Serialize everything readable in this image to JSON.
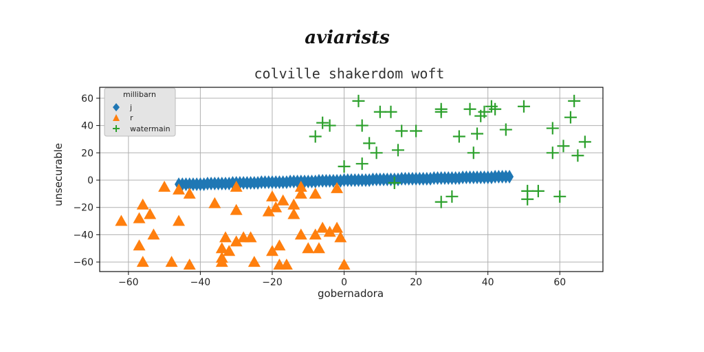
{
  "chart_data": {
    "type": "scatter",
    "suptitle": "aviarists",
    "title": "colville shakerdom woft",
    "xlabel": "gobernadora",
    "ylabel": "unsecurable",
    "xlim": [
      -68,
      72
    ],
    "ylim": [
      -67,
      68
    ],
    "xticks": [
      -60,
      -40,
      -20,
      0,
      20,
      40,
      60
    ],
    "yticks": [
      -60,
      -40,
      -20,
      0,
      20,
      40,
      60
    ],
    "grid": true,
    "legend": {
      "title": "millibarn",
      "placement": "top-left"
    },
    "colors": {
      "j": "#1f77b4",
      "r": "#ff7f0e",
      "watermain": "#2ca02c"
    },
    "series": [
      {
        "name": "j",
        "marker": "diamond",
        "points": [
          [
            -46,
            -3
          ],
          [
            -45,
            -3
          ],
          [
            -44,
            -3
          ],
          [
            -43,
            -3
          ],
          [
            -42,
            -3
          ],
          [
            -41,
            -3
          ],
          [
            -40,
            -3
          ],
          [
            -39,
            -3
          ],
          [
            -38,
            -2.5
          ],
          [
            -37,
            -2.5
          ],
          [
            -36,
            -2.5
          ],
          [
            -35,
            -2.5
          ],
          [
            -34,
            -2.5
          ],
          [
            -33,
            -2.5
          ],
          [
            -32,
            -2.5
          ],
          [
            -31,
            -2
          ],
          [
            -30,
            -2
          ],
          [
            -29,
            -2
          ],
          [
            -28,
            -2
          ],
          [
            -27,
            -2
          ],
          [
            -26,
            -2
          ],
          [
            -25,
            -2
          ],
          [
            -24,
            -2
          ],
          [
            -23,
            -1.5
          ],
          [
            -22,
            -1.5
          ],
          [
            -21,
            -1.5
          ],
          [
            -20,
            -1.5
          ],
          [
            -19,
            -1.5
          ],
          [
            -18,
            -1.5
          ],
          [
            -17,
            -1.5
          ],
          [
            -16,
            -1.5
          ],
          [
            -15,
            -1
          ],
          [
            -14,
            -1
          ],
          [
            -13,
            -1
          ],
          [
            -12,
            -1
          ],
          [
            -11,
            -1
          ],
          [
            -10,
            -1
          ],
          [
            -9,
            -1
          ],
          [
            -8,
            -1
          ],
          [
            -7,
            -0.5
          ],
          [
            -6,
            -0.5
          ],
          [
            -5,
            -0.5
          ],
          [
            -4,
            -0.5
          ],
          [
            -3,
            -0.5
          ],
          [
            -2,
            -0.5
          ],
          [
            -1,
            -0.5
          ],
          [
            0,
            0
          ],
          [
            1,
            0
          ],
          [
            2,
            0
          ],
          [
            3,
            0
          ],
          [
            4,
            0
          ],
          [
            5,
            0
          ],
          [
            6,
            0
          ],
          [
            7,
            0
          ],
          [
            8,
            0.5
          ],
          [
            9,
            0.5
          ],
          [
            10,
            0.5
          ],
          [
            11,
            0.5
          ],
          [
            12,
            0.5
          ],
          [
            13,
            0.5
          ],
          [
            14,
            0.5
          ],
          [
            15,
            0.5
          ],
          [
            16,
            1
          ],
          [
            17,
            1
          ],
          [
            18,
            1
          ],
          [
            19,
            1
          ],
          [
            20,
            1
          ],
          [
            21,
            1
          ],
          [
            22,
            1
          ],
          [
            23,
            1
          ],
          [
            24,
            1
          ],
          [
            25,
            1.5
          ],
          [
            26,
            1.5
          ],
          [
            27,
            1.5
          ],
          [
            28,
            1.5
          ],
          [
            29,
            1.5
          ],
          [
            30,
            1.5
          ],
          [
            31,
            1.5
          ],
          [
            32,
            1.5
          ],
          [
            33,
            2
          ],
          [
            34,
            2
          ],
          [
            35,
            2
          ],
          [
            36,
            2
          ],
          [
            37,
            2
          ],
          [
            38,
            2
          ],
          [
            39,
            2
          ],
          [
            40,
            2
          ],
          [
            41,
            2
          ],
          [
            42,
            2.5
          ],
          [
            43,
            2.5
          ],
          [
            44,
            2.5
          ],
          [
            45,
            2.5
          ],
          [
            46,
            2.5
          ]
        ]
      },
      {
        "name": "r",
        "marker": "triangle",
        "points": [
          [
            -62,
            -30
          ],
          [
            -56,
            -18
          ],
          [
            -57,
            -28
          ],
          [
            -54,
            -25
          ],
          [
            -53,
            -40
          ],
          [
            -57,
            -48
          ],
          [
            -56,
            -60
          ],
          [
            -50,
            -5
          ],
          [
            -46,
            -7
          ],
          [
            -46,
            -30
          ],
          [
            -43,
            -10
          ],
          [
            -48,
            -60
          ],
          [
            -43,
            -62
          ],
          [
            -36,
            -17
          ],
          [
            -30,
            -22
          ],
          [
            -33,
            -42
          ],
          [
            -34,
            -50
          ],
          [
            -34,
            -57
          ],
          [
            -34,
            -60
          ],
          [
            -32,
            -52
          ],
          [
            -30,
            -45
          ],
          [
            -28,
            -42
          ],
          [
            -26,
            -42
          ],
          [
            -30,
            -5
          ],
          [
            -25,
            -60
          ],
          [
            -21,
            -23
          ],
          [
            -20,
            -52
          ],
          [
            -20,
            -12
          ],
          [
            -19,
            -20
          ],
          [
            -18,
            -48
          ],
          [
            -17,
            -15
          ],
          [
            -16,
            -62
          ],
          [
            -18,
            -62
          ],
          [
            -14,
            -25
          ],
          [
            -14,
            -18
          ],
          [
            -12,
            -10
          ],
          [
            -12,
            -5
          ],
          [
            -12,
            -40
          ],
          [
            -10,
            -50
          ],
          [
            -8,
            -40
          ],
          [
            -8,
            -10
          ],
          [
            -7,
            -50
          ],
          [
            -6,
            -35
          ],
          [
            -4,
            -38
          ],
          [
            -2,
            -35
          ],
          [
            -2,
            -6
          ],
          [
            -1,
            -42
          ],
          [
            0,
            -62
          ]
        ]
      },
      {
        "name": "watermain",
        "marker": "plus",
        "points": [
          [
            -8,
            32
          ],
          [
            -6,
            42
          ],
          [
            -4,
            40
          ],
          [
            4,
            58
          ],
          [
            5,
            40
          ],
          [
            7,
            27
          ],
          [
            9,
            20
          ],
          [
            10,
            50
          ],
          [
            13,
            50
          ],
          [
            15,
            22
          ],
          [
            16,
            36
          ],
          [
            20,
            36
          ],
          [
            0,
            10
          ],
          [
            5,
            12
          ],
          [
            14,
            -2
          ],
          [
            27,
            52
          ],
          [
            27,
            50
          ],
          [
            32,
            32
          ],
          [
            35,
            52
          ],
          [
            36,
            20
          ],
          [
            37,
            34
          ],
          [
            38,
            47
          ],
          [
            39,
            50
          ],
          [
            41,
            54
          ],
          [
            42,
            52
          ],
          [
            45,
            37
          ],
          [
            30,
            -12
          ],
          [
            27,
            -16
          ],
          [
            50,
            54
          ],
          [
            51,
            -8
          ],
          [
            51,
            -14
          ],
          [
            54,
            -8
          ],
          [
            58,
            38
          ],
          [
            60,
            -12
          ],
          [
            58,
            20
          ],
          [
            61,
            25
          ],
          [
            63,
            46
          ],
          [
            64,
            58
          ],
          [
            65,
            18
          ],
          [
            67,
            28
          ]
        ]
      }
    ]
  }
}
